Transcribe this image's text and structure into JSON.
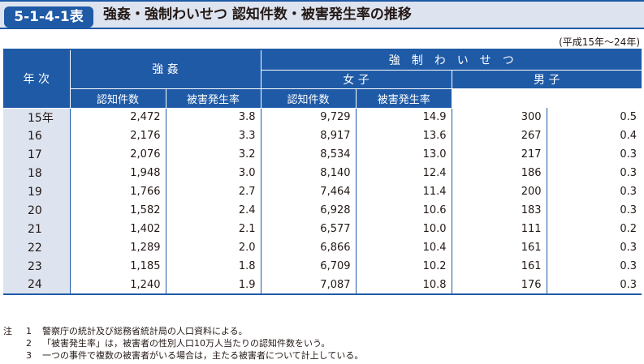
{
  "badge": "5-1-4-1表",
  "title": "強姦・強制わいせつ 認知件数・被害発生率の推移",
  "period": "(平成15年～24年)",
  "header": {
    "year_col": "年 次",
    "rape": "強 姦",
    "indecent_assault": "強制わいせつ",
    "female": "女 子",
    "male": "男 子",
    "count": "認知件数",
    "rate": "被害発生率"
  },
  "rows": [
    {
      "year": "15年",
      "rape_count": "2,472",
      "rape_rate": "3.8",
      "f_count": "9,729",
      "f_rate": "14.9",
      "m_count": "300",
      "m_rate": "0.5"
    },
    {
      "year": "16",
      "rape_count": "2,176",
      "rape_rate": "3.3",
      "f_count": "8,917",
      "f_rate": "13.6",
      "m_count": "267",
      "m_rate": "0.4"
    },
    {
      "year": "17",
      "rape_count": "2,076",
      "rape_rate": "3.2",
      "f_count": "8,534",
      "f_rate": "13.0",
      "m_count": "217",
      "m_rate": "0.3"
    },
    {
      "year": "18",
      "rape_count": "1,948",
      "rape_rate": "3.0",
      "f_count": "8,140",
      "f_rate": "12.4",
      "m_count": "186",
      "m_rate": "0.3"
    },
    {
      "year": "19",
      "rape_count": "1,766",
      "rape_rate": "2.7",
      "f_count": "7,464",
      "f_rate": "11.4",
      "m_count": "200",
      "m_rate": "0.3"
    },
    {
      "year": "20",
      "rape_count": "1,582",
      "rape_rate": "2.4",
      "f_count": "6,928",
      "f_rate": "10.6",
      "m_count": "183",
      "m_rate": "0.3"
    },
    {
      "year": "21",
      "rape_count": "1,402",
      "rape_rate": "2.1",
      "f_count": "6,577",
      "f_rate": "10.0",
      "m_count": "111",
      "m_rate": "0.2"
    },
    {
      "year": "22",
      "rape_count": "1,289",
      "rape_rate": "2.0",
      "f_count": "6,866",
      "f_rate": "10.4",
      "m_count": "161",
      "m_rate": "0.3"
    },
    {
      "year": "23",
      "rape_count": "1,185",
      "rape_rate": "1.8",
      "f_count": "6,709",
      "f_rate": "10.2",
      "m_count": "161",
      "m_rate": "0.3"
    },
    {
      "year": "24",
      "rape_count": "1,240",
      "rape_rate": "1.9",
      "f_count": "7,087",
      "f_rate": "10.8",
      "m_count": "176",
      "m_rate": "0.3"
    }
  ],
  "notes": {
    "label": "注",
    "items": [
      {
        "num": "1",
        "text": "警察庁の統計及び総務省統計局の人口資料による。"
      },
      {
        "num": "2",
        "text": "「被害発生率」は，被害者の性別人口10万人当たりの認知件数をいう。"
      },
      {
        "num": "3",
        "text": "一つの事件で複数の被害者がいる場合は，主たる被害者について計上している。"
      }
    ]
  },
  "colors": {
    "accent": "#1f5aa6",
    "light": "#dde4ef"
  }
}
